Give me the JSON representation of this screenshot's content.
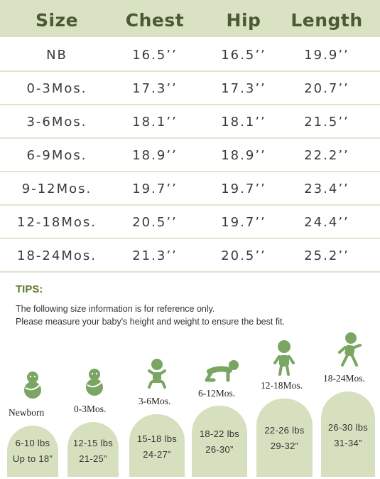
{
  "colors": {
    "header_bg": "#d9e3c4",
    "header_text": "#4a5a33",
    "divider": "#dde6cc",
    "tips_accent": "#5f7a30",
    "pill_bg": "#d6e0bf",
    "icon_green": "#7aa562"
  },
  "table": {
    "headers": [
      "Size",
      "Chest",
      "Hip",
      "Length"
    ],
    "rows": [
      [
        "NB",
        "16.5’’",
        "16.5’’",
        "19.9’’"
      ],
      [
        "0-3Mos.",
        "17.3’’",
        "17.3’’",
        "20.7’’"
      ],
      [
        "3-6Mos.",
        "18.1’’",
        "18.1’’",
        "21.5’’"
      ],
      [
        "6-9Mos.",
        "18.9’’",
        "18.9’’",
        "22.2’’"
      ],
      [
        "9-12Mos.",
        "19.7’’",
        "19.7’’",
        "23.4’’"
      ],
      [
        "12-18Mos.",
        "20.5’’",
        "19.7’’",
        "24.4’’"
      ],
      [
        "18-24Mos.",
        "21.3’’",
        "20.5’’",
        "25.2’’"
      ]
    ]
  },
  "tips": {
    "title": "TIPS:",
    "line1": "The following size information is for reference only.",
    "line2": "Please measure your baby's height and weight to ensure the best fit."
  },
  "stages": [
    {
      "label": "Newborn",
      "icon": "swaddled-baby-icon",
      "weight": "6-10 lbs",
      "height": "Up to 18”"
    },
    {
      "label": "0-3Mos.",
      "icon": "swaddled-baby-icon",
      "weight": "12-15 lbs",
      "height": "21-25”"
    },
    {
      "label": "3-6Mos.",
      "icon": "sitting-baby-icon",
      "weight": "15-18 lbs",
      "height": "24-27”"
    },
    {
      "label": "6-12Mos.",
      "icon": "crawling-baby-icon",
      "weight": "18-22 lbs",
      "height": "26-30”"
    },
    {
      "label": "12-18Mos.",
      "icon": "standing-toddler-icon",
      "weight": "22-26 lbs",
      "height": "29-32”"
    },
    {
      "label": "18-24Mos.",
      "icon": "walking-toddler-icon",
      "weight": "26-30 lbs",
      "height": "31-34”"
    }
  ]
}
